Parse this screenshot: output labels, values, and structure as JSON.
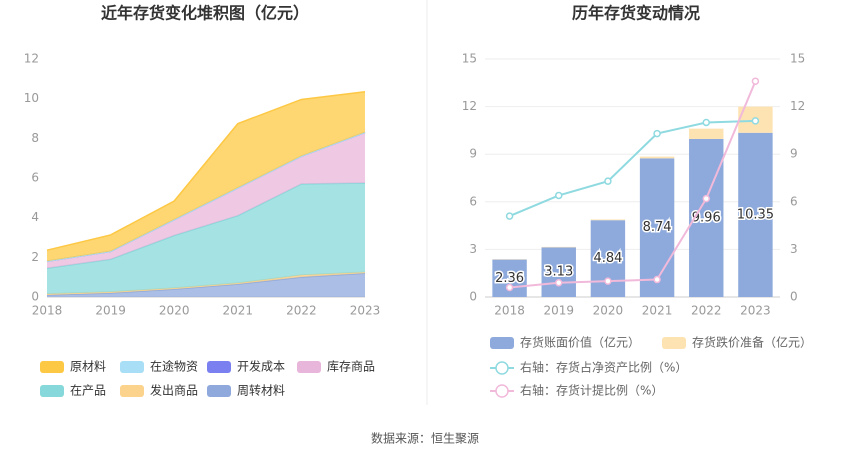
{
  "chart_data": [
    {
      "type": "area",
      "title": "近年存货变化堆积图（亿元）",
      "x": [
        "2018",
        "2019",
        "2020",
        "2021",
        "2022",
        "2023"
      ],
      "series": [
        {
          "name": "原材料",
          "color": "#fdc843",
          "values": [
            0.56,
            0.83,
            0.94,
            3.24,
            2.86,
            2.05
          ]
        },
        {
          "name": "在途物资",
          "color": "#a8def6",
          "values": [
            0,
            0,
            0,
            0,
            0,
            0
          ]
        },
        {
          "name": "开发成本",
          "color": "#7b80f0",
          "values": [
            0,
            0,
            0,
            0,
            0,
            0
          ]
        },
        {
          "name": "库存商品",
          "color": "#e9b6db",
          "values": [
            0.35,
            0.4,
            0.8,
            1.4,
            1.4,
            2.55
          ]
        },
        {
          "name": "在产品",
          "color": "#86d8da",
          "values": [
            1.3,
            1.65,
            2.65,
            3.4,
            4.6,
            4.5
          ]
        },
        {
          "name": "发出商品",
          "color": "#fbd38d",
          "values": [
            0.05,
            0.05,
            0.05,
            0.05,
            0.1,
            0.05
          ]
        },
        {
          "name": "周转材料",
          "color": "#8fa9dd",
          "values": [
            0.1,
            0.2,
            0.4,
            0.65,
            1.0,
            1.2
          ]
        }
      ],
      "ylim": [
        0,
        12
      ],
      "yticks": [
        0,
        2,
        4,
        6,
        8,
        10,
        12
      ],
      "grid": false
    },
    {
      "type": "bar",
      "title": "历年存货变动情况",
      "categories": [
        "2018",
        "2019",
        "2020",
        "2021",
        "2022",
        "2023"
      ],
      "series": [
        {
          "name": "存货账面价值（亿元）",
          "color": "#8eaadc",
          "values": [
            2.36,
            3.13,
            4.84,
            8.74,
            9.96,
            10.35
          ]
        },
        {
          "name": "存货跌价准备（亿元）",
          "color": "#fde3b2",
          "values": [
            0.02,
            0.03,
            0.05,
            0.11,
            0.65,
            1.65
          ]
        },
        {
          "name": "右轴：存货占净资产比例（%）",
          "color": "#8fdae0",
          "axis": "y2",
          "values": [
            5.1,
            6.4,
            7.3,
            10.3,
            11.0,
            11.1
          ]
        },
        {
          "name": "右轴：存货计提比例（%）",
          "color": "#f1b9da",
          "axis": "y2",
          "values": [
            0.6,
            0.9,
            1.0,
            1.1,
            6.2,
            13.6
          ]
        }
      ],
      "ylim": [
        0,
        15
      ],
      "yticks": [
        0,
        3,
        6,
        9,
        12,
        15
      ],
      "y2lim": [
        0,
        15
      ],
      "y2ticks": [
        0,
        3,
        6,
        9,
        12,
        15
      ],
      "grid": true
    }
  ],
  "source": "数据来源：恒生聚源"
}
